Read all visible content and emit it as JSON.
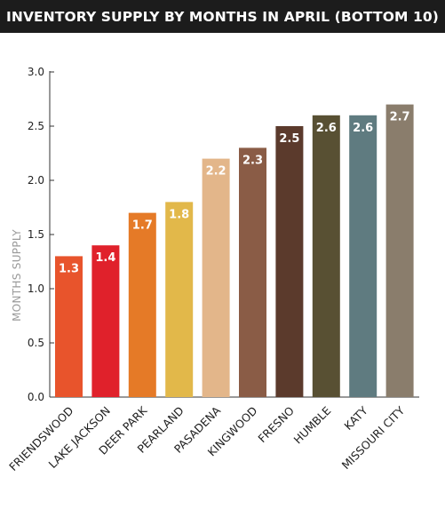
{
  "chart_data": {
    "type": "bar",
    "title": "INVENTORY SUPPLY BY MONTHS IN APRIL (BOTTOM 10)",
    "ylabel": "MONTHS SUPPLY",
    "xlabel": "",
    "ylim": [
      0,
      3
    ],
    "yticks": [
      0,
      0.5,
      1,
      1.5,
      2,
      2.5,
      3
    ],
    "ytick_labels": [
      "0.0",
      "0.5",
      "1.0",
      "1.5",
      "2.0",
      "2.5",
      "3.0"
    ],
    "grid": false,
    "categories": [
      "FRIENDSWOOD",
      "LAKE JACKSON",
      "DEER PARK",
      "PEARLAND",
      "PASADENA",
      "KINGWOOD",
      "FRESNO",
      "HUMBLE",
      "KATY",
      "MISSOURI CITY"
    ],
    "values": [
      1.3,
      1.4,
      1.7,
      1.8,
      2.2,
      2.3,
      2.5,
      2.6,
      2.6,
      2.7
    ],
    "value_labels": [
      "1.3",
      "1.4",
      "1.7",
      "1.8",
      "2.2",
      "2.3",
      "2.5",
      "2.6",
      "2.6",
      "2.7"
    ],
    "bar_colors": [
      "#e8542c",
      "#e0212b",
      "#e57a27",
      "#e2b84a",
      "#e3b68a",
      "#8a5c46",
      "#5b3a2c",
      "#585033",
      "#5f7b80",
      "#8a7d6c"
    ]
  }
}
